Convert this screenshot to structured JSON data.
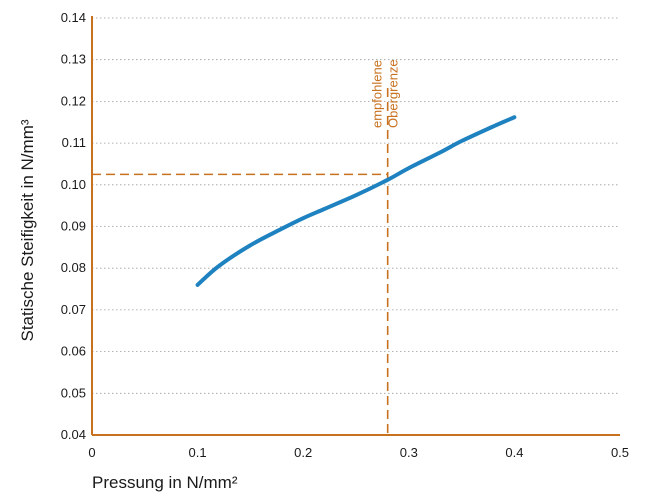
{
  "chart_data": {
    "type": "line",
    "xlabel": "Pressung in N/mm²",
    "ylabel": "Statische Steifigkeit in N/mm³",
    "xlim": [
      0,
      0.5
    ],
    "ylim": [
      0.04,
      0.14
    ],
    "x_ticks": [
      "0",
      "0.1",
      "0.2",
      "0.3",
      "0.4",
      "0.5"
    ],
    "y_ticks": [
      "0.04",
      "0.05",
      "0.06",
      "0.07",
      "0.08",
      "0.09",
      "0.10",
      "0.11",
      "0.12",
      "0.13",
      "0.14"
    ],
    "grid": "horizontal-dotted",
    "series": [
      {
        "color": "#1f82c0",
        "x": [
          0.1,
          0.12,
          0.15,
          0.18,
          0.2,
          0.22,
          0.25,
          0.28,
          0.3,
          0.33,
          0.35,
          0.38,
          0.4
        ],
        "y": [
          0.076,
          0.0805,
          0.0855,
          0.0895,
          0.092,
          0.0942,
          0.0975,
          0.1012,
          0.104,
          0.1078,
          0.1105,
          0.114,
          0.1162
        ]
      }
    ],
    "annotation": {
      "lines": [
        "empfohlene",
        "Obergrenze"
      ],
      "x": 0.28,
      "y": 0.1025,
      "color": "#c8711f"
    },
    "colors": {
      "axis": "#c8711f",
      "grid": "#9a9a9a",
      "series": "#1f82c0"
    }
  }
}
